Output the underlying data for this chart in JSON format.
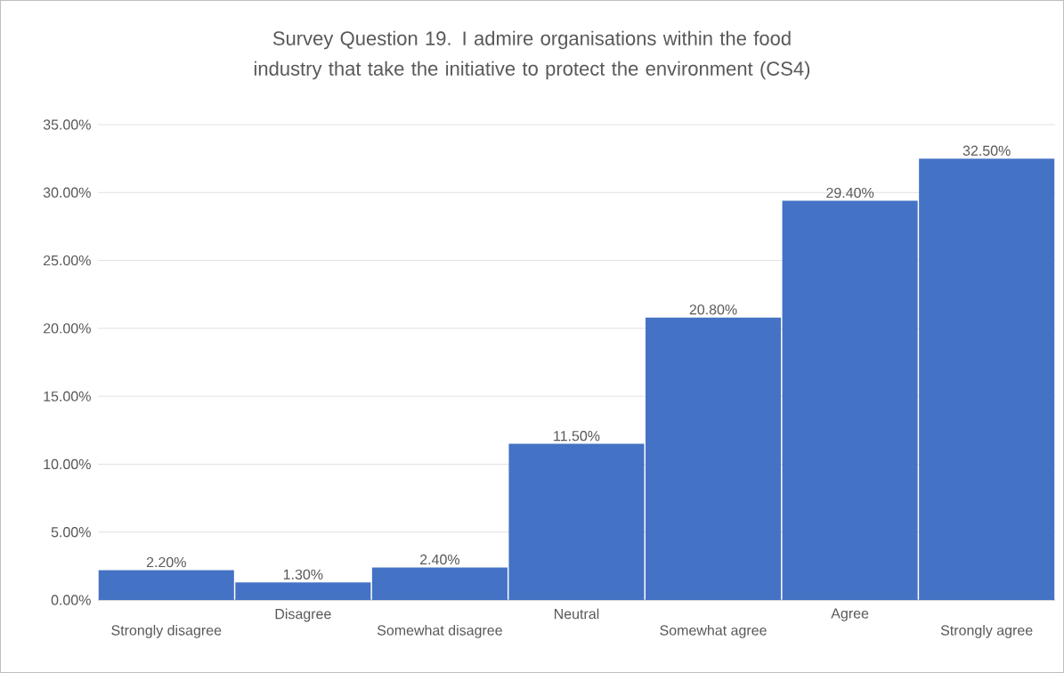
{
  "chart_data": {
    "type": "bar",
    "title": "Survey Question 19. I admire organisations within the food industry that take the initiative to protect the environment (CS4)",
    "categories": [
      "Strongly disagree",
      "Disagree",
      "Somewhat disagree",
      "Neutral",
      "Somewhat agree",
      "Agree",
      "Strongly agree"
    ],
    "values": [
      2.2,
      1.3,
      2.4,
      11.5,
      20.8,
      29.4,
      32.5
    ],
    "value_labels": [
      "2.20%",
      "1.30%",
      "2.40%",
      "11.50%",
      "20.80%",
      "29.40%",
      "32.50%"
    ],
    "color": "#4472c4",
    "ylim": [
      0,
      35
    ],
    "yticks": [
      {
        "value": 0,
        "label": "0.00%"
      },
      {
        "value": 5,
        "label": "5.00%"
      },
      {
        "value": 10,
        "label": "10.00%"
      },
      {
        "value": 15,
        "label": "15.00%"
      },
      {
        "value": 20,
        "label": "20.00%"
      },
      {
        "value": 25,
        "label": "25.00%"
      },
      {
        "value": 30,
        "label": "30.00%"
      },
      {
        "value": 35,
        "label": "35.00%"
      }
    ],
    "grid": "y"
  }
}
